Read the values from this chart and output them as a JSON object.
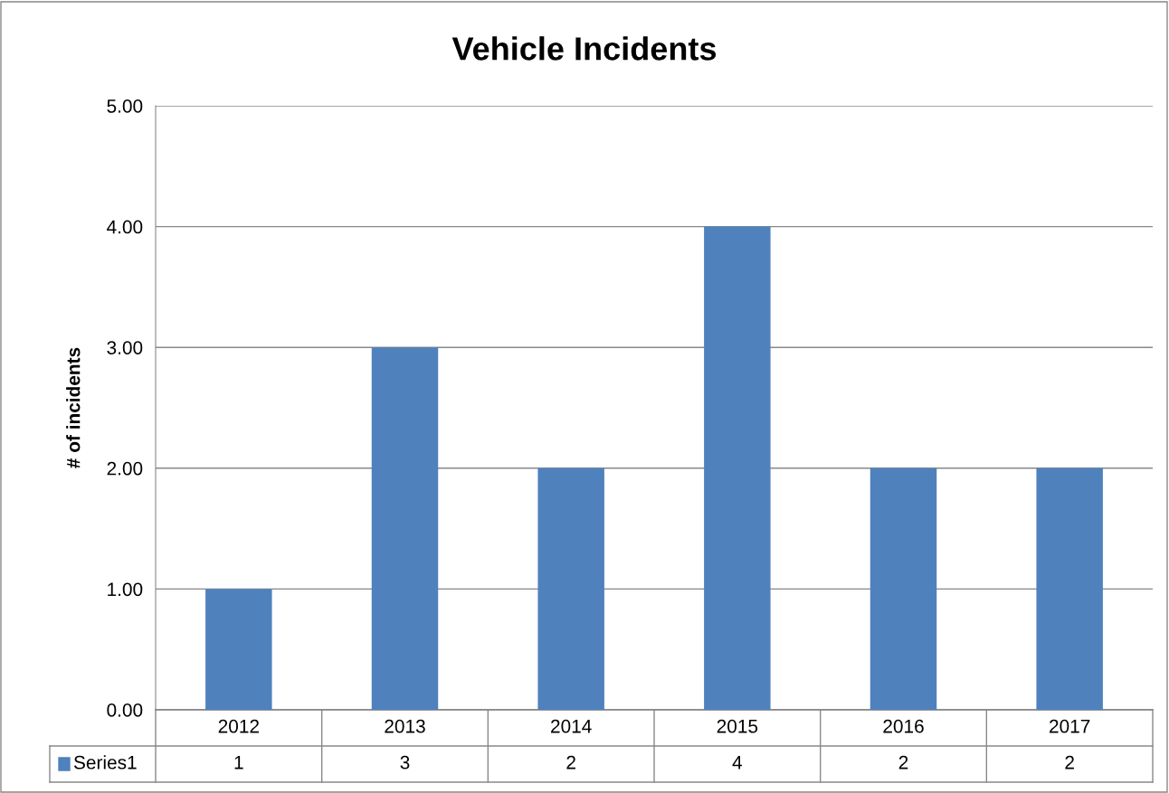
{
  "chart_data": {
    "type": "bar",
    "title": "Vehicle Incidents",
    "ylabel": "# of incidents",
    "categories": [
      "2012",
      "2013",
      "2014",
      "2015",
      "2016",
      "2017"
    ],
    "series": [
      {
        "name": "Series1",
        "color": "#4f81bd",
        "values": [
          1,
          3,
          2,
          4,
          2,
          2
        ]
      }
    ],
    "ylim": [
      0,
      5
    ],
    "yticks": [
      {
        "value": 0,
        "label": "0.00"
      },
      {
        "value": 1,
        "label": "1.00"
      },
      {
        "value": 2,
        "label": "2.00"
      },
      {
        "value": 3,
        "label": "3.00"
      },
      {
        "value": 4,
        "label": "4.00"
      },
      {
        "value": 5,
        "label": "5.00"
      }
    ],
    "grid": "y",
    "legend": "bottom",
    "data_labels": true
  }
}
